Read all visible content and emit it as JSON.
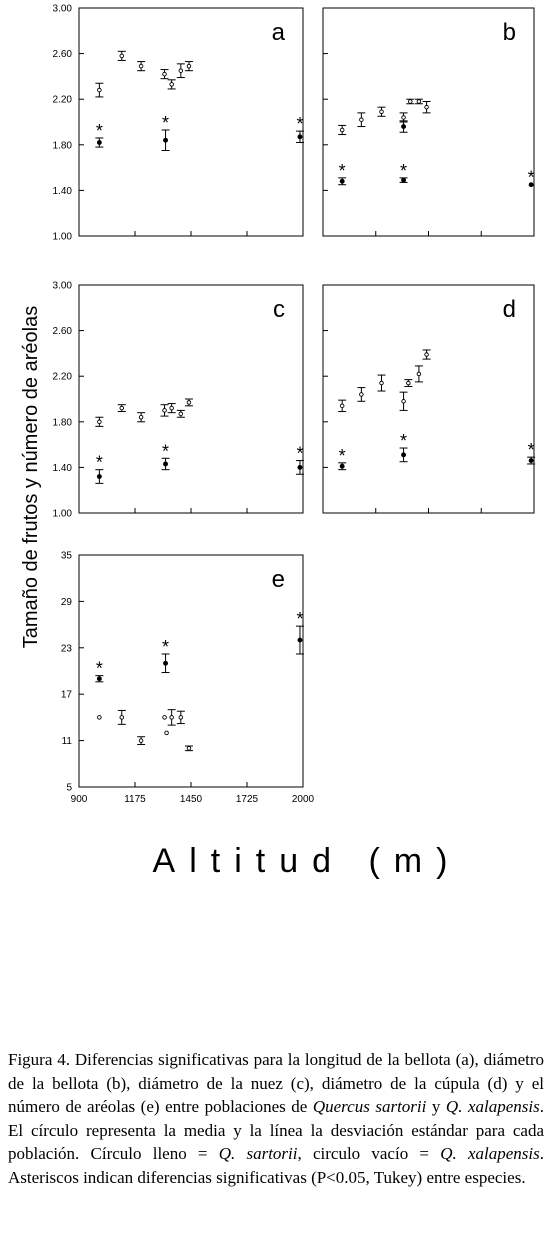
{
  "chart_data": [
    {
      "id": "a",
      "type": "scatter",
      "panel_label": "a",
      "ylim": [
        1.0,
        3.0
      ],
      "yticks": [
        "1.00",
        "1.40",
        "1.80",
        "2.20",
        "2.60",
        "3.00"
      ],
      "series": [
        {
          "marker": "filled",
          "points": [
            {
              "x": 1000,
              "y": 1.82,
              "sd": 0.04,
              "star": true
            },
            {
              "x": 1325,
              "y": 1.84,
              "sd": 0.09,
              "star": true
            },
            {
              "x": 1985,
              "y": 1.87,
              "sd": 0.05,
              "star": true
            }
          ]
        },
        {
          "marker": "open",
          "points": [
            {
              "x": 1000,
              "y": 2.28,
              "sd": 0.06
            },
            {
              "x": 1110,
              "y": 2.58,
              "sd": 0.04
            },
            {
              "x": 1205,
              "y": 2.49,
              "sd": 0.04
            },
            {
              "x": 1320,
              "y": 2.42,
              "sd": 0.04
            },
            {
              "x": 1355,
              "y": 2.33,
              "sd": 0.04
            },
            {
              "x": 1400,
              "y": 2.45,
              "sd": 0.06
            },
            {
              "x": 1440,
              "y": 2.49,
              "sd": 0.04
            }
          ]
        }
      ]
    },
    {
      "id": "b",
      "type": "scatter",
      "panel_label": "b",
      "ylim": [
        1.0,
        3.0
      ],
      "series": [
        {
          "marker": "filled",
          "points": [
            {
              "x": 1000,
              "y": 1.48,
              "sd": 0.03,
              "star": true
            },
            {
              "x": 1320,
              "y": 1.49,
              "sd": 0.02,
              "star": true
            },
            {
              "x": 1985,
              "y": 1.45,
              "sd": 0.0,
              "star": true
            }
          ]
        },
        {
          "marker": "open",
          "points": [
            {
              "x": 1000,
              "y": 1.93,
              "sd": 0.04
            },
            {
              "x": 1100,
              "y": 2.02,
              "sd": 0.06
            },
            {
              "x": 1205,
              "y": 2.09,
              "sd": 0.04
            },
            {
              "x": 1320,
              "y": 2.04,
              "sd": 0.04
            },
            {
              "x": 1355,
              "y": 2.18,
              "sd": 0.02
            },
            {
              "x": 1400,
              "y": 2.18,
              "sd": 0.02
            },
            {
              "x": 1440,
              "y": 2.13,
              "sd": 0.05
            }
          ]
        },
        {
          "marker": "filled",
          "points": [
            {
              "x": 1320,
              "y": 1.96,
              "sd": 0.05
            }
          ]
        }
      ]
    },
    {
      "id": "c",
      "type": "scatter",
      "panel_label": "c",
      "ylim": [
        1.0,
        3.0
      ],
      "yticks": [
        "1.00",
        "1.40",
        "1.80",
        "2.20",
        "2.60",
        "3.00"
      ],
      "series": [
        {
          "marker": "filled",
          "points": [
            {
              "x": 1000,
              "y": 1.32,
              "sd": 0.06,
              "star": true
            },
            {
              "x": 1325,
              "y": 1.43,
              "sd": 0.05,
              "star": true
            },
            {
              "x": 1985,
              "y": 1.4,
              "sd": 0.06,
              "star": true
            }
          ]
        },
        {
          "marker": "open",
          "points": [
            {
              "x": 1000,
              "y": 1.8,
              "sd": 0.04
            },
            {
              "x": 1110,
              "y": 1.92,
              "sd": 0.03
            },
            {
              "x": 1205,
              "y": 1.84,
              "sd": 0.04
            },
            {
              "x": 1320,
              "y": 1.9,
              "sd": 0.05
            },
            {
              "x": 1355,
              "y": 1.92,
              "sd": 0.04
            },
            {
              "x": 1400,
              "y": 1.87,
              "sd": 0.03
            },
            {
              "x": 1440,
              "y": 1.97,
              "sd": 0.03
            }
          ]
        }
      ]
    },
    {
      "id": "d",
      "type": "scatter",
      "panel_label": "d",
      "ylim": [
        1.0,
        3.0
      ],
      "series": [
        {
          "marker": "filled",
          "points": [
            {
              "x": 1000,
              "y": 1.41,
              "sd": 0.03,
              "star": true
            },
            {
              "x": 1320,
              "y": 1.51,
              "sd": 0.06,
              "star": true
            },
            {
              "x": 1985,
              "y": 1.46,
              "sd": 0.03,
              "star": true
            }
          ]
        },
        {
          "marker": "open",
          "points": [
            {
              "x": 1000,
              "y": 1.94,
              "sd": 0.05
            },
            {
              "x": 1100,
              "y": 2.04,
              "sd": 0.06
            },
            {
              "x": 1205,
              "y": 2.14,
              "sd": 0.07
            },
            {
              "x": 1320,
              "y": 1.98,
              "sd": 0.08
            },
            {
              "x": 1345,
              "y": 2.14,
              "sd": 0.03
            },
            {
              "x": 1400,
              "y": 2.22,
              "sd": 0.07
            },
            {
              "x": 1440,
              "y": 2.39,
              "sd": 0.04
            }
          ]
        }
      ]
    },
    {
      "id": "e",
      "type": "scatter",
      "panel_label": "e",
      "ylim": [
        5,
        35
      ],
      "xlim": [
        900,
        2000
      ],
      "yticks": [
        "5",
        "11",
        "17",
        "23",
        "29",
        "35"
      ],
      "xticks": [
        "900",
        "1175",
        "1450",
        "1725",
        "2000"
      ],
      "series": [
        {
          "marker": "filled",
          "points": [
            {
              "x": 1000,
              "y": 19.0,
              "sd": 0.4,
              "star": true
            },
            {
              "x": 1325,
              "y": 21.0,
              "sd": 1.2,
              "star": true
            },
            {
              "x": 1985,
              "y": 24.0,
              "sd": 1.8,
              "star": true
            }
          ]
        },
        {
          "marker": "open",
          "points": [
            {
              "x": 1000,
              "y": 14.0,
              "sd": 0.0
            },
            {
              "x": 1110,
              "y": 14.0,
              "sd": 0.9
            },
            {
              "x": 1205,
              "y": 11.0,
              "sd": 0.5
            },
            {
              "x": 1320,
              "y": 14.0,
              "sd": 0.0
            },
            {
              "x": 1330,
              "y": 12.0,
              "sd": 0.0
            },
            {
              "x": 1355,
              "y": 14.0,
              "sd": 1.0
            },
            {
              "x": 1400,
              "y": 14.0,
              "sd": 0.8
            },
            {
              "x": 1440,
              "y": 10.0,
              "sd": 0.3
            }
          ]
        }
      ]
    }
  ],
  "axis_labels": {
    "y": "Tamaño de frutos y número de aréolas",
    "x": "Altitud (m)"
  },
  "caption": {
    "figure_label": "Figura 4.",
    "text_1": " Diferencias significativas para la longitud de la bellota (",
    "a": "a",
    "text_2": "), diámetro de la bellota (",
    "b": "b",
    "text_3": "), diámetro de la nuez (",
    "c": "c",
    "text_4": "), diámetro de la cúpula (",
    "d": "d",
    "text_5": ") y el número de aréolas (",
    "e": "e",
    "text_6": ") entre poblaciones de ",
    "species_1": "Quercus sartorii",
    "text_7": " y ",
    "species_2": "Q. xalapensis",
    "text_8": ". El círculo representa la media y la línea la desviación estándar para cada población. Círculo lleno = ",
    "species_3": "Q. sartorii",
    "text_9": ", circulo vacío = ",
    "species_4": "Q. xalapensis",
    "text_10": ". Asteriscos indican diferencias significativas (P<0.05, Tukey) entre especies."
  }
}
